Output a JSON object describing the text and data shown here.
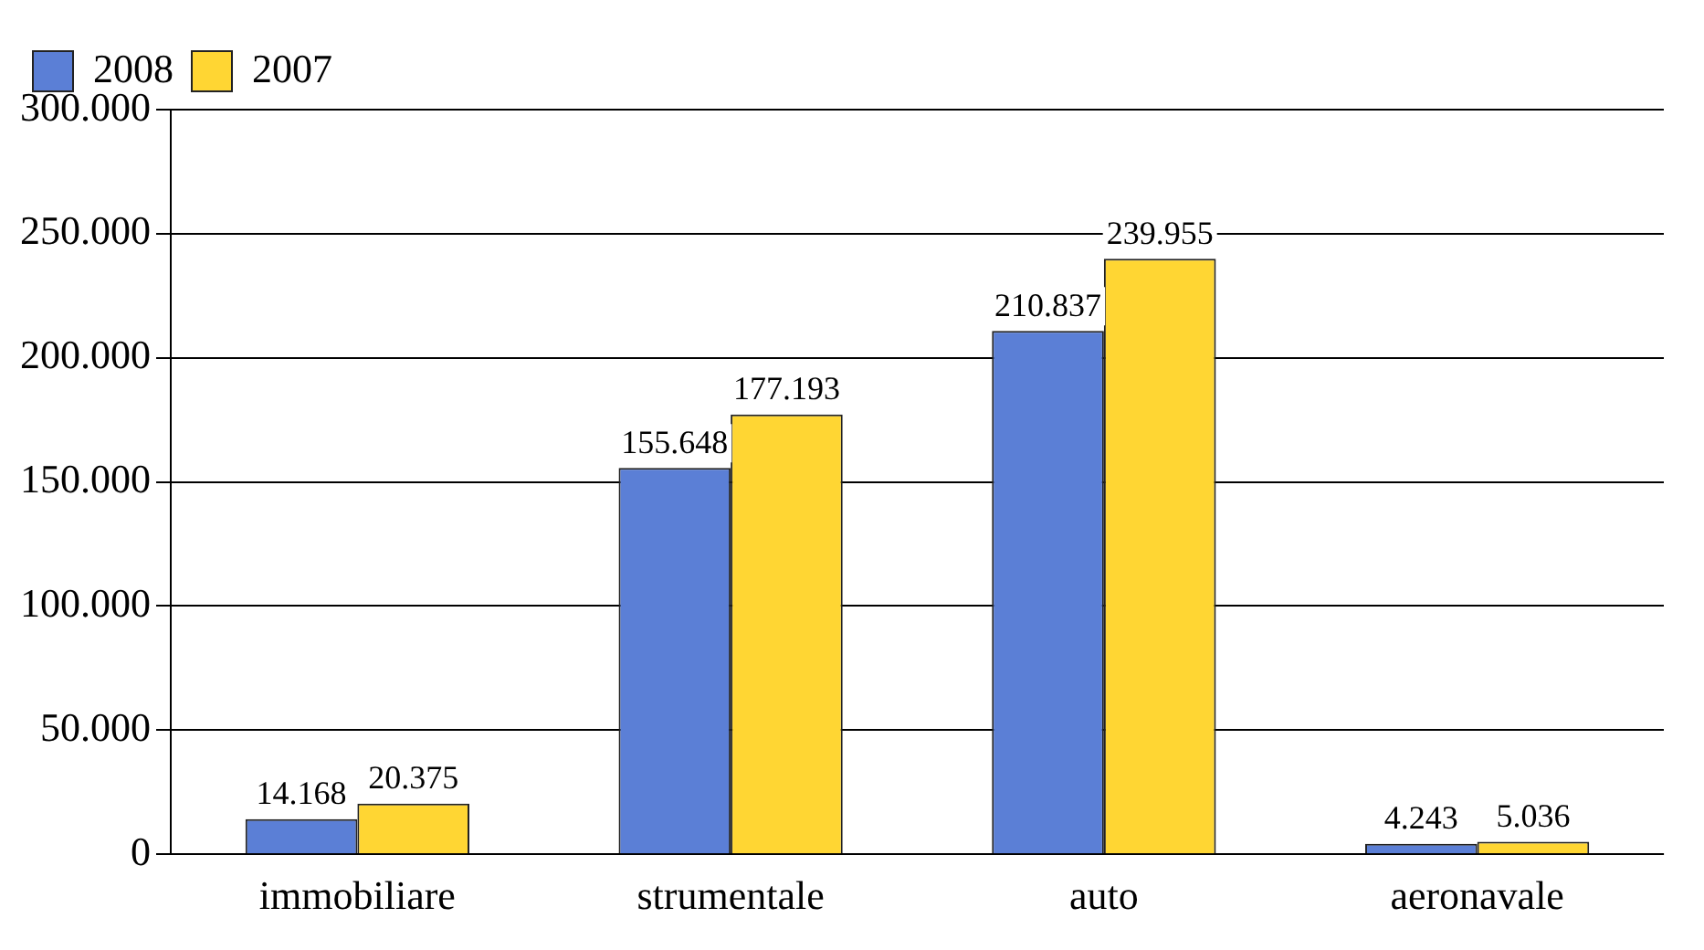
{
  "chart_data": {
    "type": "bar",
    "categories": [
      "immobiliare",
      "strumentale",
      "auto",
      "aeronavale"
    ],
    "series": [
      {
        "name": "2008",
        "color": "#5b7fd6",
        "values": [
          14168,
          155648,
          210837,
          4243
        ],
        "value_labels": [
          "14.168",
          "155.648",
          "210.837",
          "4.243"
        ]
      },
      {
        "name": "2007",
        "color": "#ffd633",
        "values": [
          20375,
          177193,
          239955,
          5036
        ],
        "value_labels": [
          "20.375",
          "177.193",
          "239.955",
          "5.036"
        ]
      }
    ],
    "ylim": [
      0,
      300000
    ],
    "yticks": [
      {
        "value": 0,
        "label": "0"
      },
      {
        "value": 50000,
        "label": "50.000"
      },
      {
        "value": 100000,
        "label": "100.000"
      },
      {
        "value": 150000,
        "label": "150.000"
      },
      {
        "value": 200000,
        "label": "200.000"
      },
      {
        "value": 250000,
        "label": "250.000"
      },
      {
        "value": 300000,
        "label": "300.000"
      }
    ],
    "grid": "y",
    "legend": "top left"
  }
}
